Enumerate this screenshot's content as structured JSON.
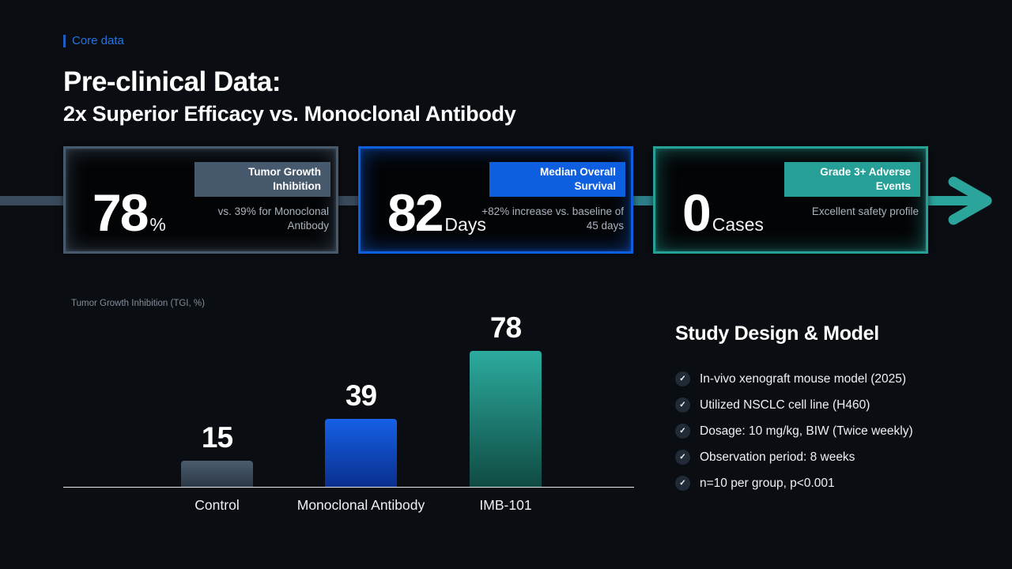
{
  "slide": {
    "eyebrow": "Core data",
    "title": "Pre-clinical Data:",
    "subtitle": "2x Superior Efficacy vs. Monoclonal Antibody"
  },
  "colors": {
    "background": "#0a0d12",
    "eyebrow_blue": "#2474e0",
    "accent_slate": "#47596c",
    "accent_blue": "#0e5fe0",
    "accent_teal": "#26a097",
    "arrow_shaft_left": "#394a5c",
    "arrow_head_teal": "#2ba49c",
    "muted_text": "#aab2bb"
  },
  "stat_cards": [
    {
      "value": "78",
      "unit": "%",
      "badge": "Tumor Growth Inhibition",
      "note": "vs. 39% for Monoclonal Antibody",
      "accent": "#47596c",
      "glow": "rgba(92,112,134,0.5)"
    },
    {
      "value": "82",
      "unit": "Days",
      "badge": "Median Overall Survival",
      "note": "+82% increase vs. baseline of 45 days",
      "accent": "#0e5fe0",
      "glow": "rgba(18,97,226,0.55)"
    },
    {
      "value": "0",
      "unit": "Cases",
      "badge": "Grade 3+ Adverse Events",
      "note": "Excellent safety profile",
      "accent": "#26a097",
      "glow": "rgba(42,167,156,0.5)"
    }
  ],
  "chart_data": {
    "type": "bar",
    "title": "Tumor Growth Inhibition (TGI, %)",
    "categories": [
      "Control",
      "Monoclonal Antibody",
      "IMB-101"
    ],
    "values": [
      15,
      39,
      78
    ],
    "bar_gradients": [
      [
        "#4a5c6e",
        "#2b3845"
      ],
      [
        "#1560e6",
        "#0a2f8e"
      ],
      [
        "#2cab9e",
        "#0f4b43"
      ]
    ],
    "xlabel": "",
    "ylabel": "Tumor Growth Inhibition (TGI, %)",
    "ylim": [
      0,
      100
    ],
    "grid": false,
    "legend": false,
    "data_labels": true
  },
  "study_design": {
    "heading": "Study Design & Model",
    "check_icon": "✓",
    "items": [
      "In-vivo xenograft mouse model (2025)",
      "Utilized NSCLC cell line (H460)",
      "Dosage: 10 mg/kg, BIW (Twice weekly)",
      "Observation period: 8 weeks",
      "n=10 per group, p<0.001"
    ]
  }
}
